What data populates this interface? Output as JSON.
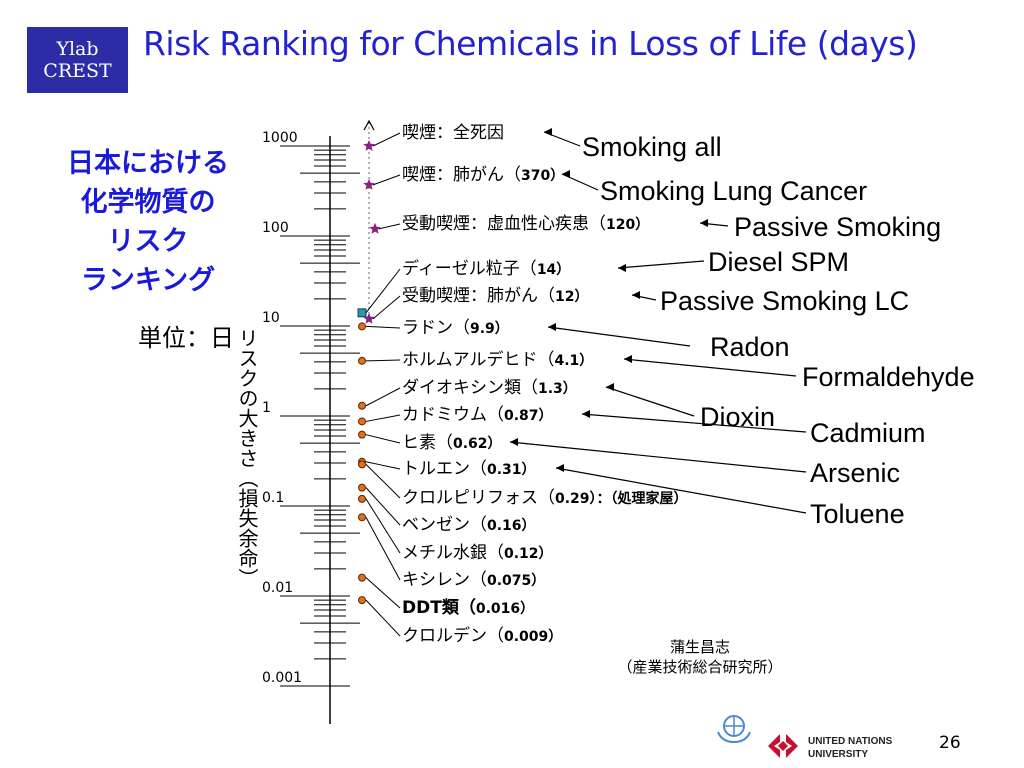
{
  "logo": {
    "line1": "Ylab",
    "line2": "CREST"
  },
  "title": "Risk Ranking for Chemicals in Loss of Life (days)",
  "jp_heading": [
    "日本における",
    "化学物質の",
    "リスク",
    "ランキング"
  ],
  "unit_label": "単位：日",
  "axis_caption": "リスクの大きさ（損失余命）",
  "colors": {
    "title": "#2222d0",
    "heading": "#1a1ad8",
    "logo_bg": "#2c2ca6",
    "star": "#8a2080",
    "dot": "#e07020",
    "square": "#20a0a0"
  },
  "chart_data": {
    "type": "scatter",
    "scale": "log",
    "ylim": [
      0.001,
      1000
    ],
    "y_ticks": [
      {
        "value": 1000,
        "label": "1000"
      },
      {
        "value": 100,
        "label": "100"
      },
      {
        "value": 10,
        "label": "10"
      },
      {
        "value": 1,
        "label": "1"
      },
      {
        "value": 0.1,
        "label": "0.1"
      },
      {
        "value": 0.01,
        "label": "0.01"
      },
      {
        "value": 0.001,
        "label": "0.001"
      }
    ],
    "points": [
      {
        "name": "喫煙：全死因",
        "value_label": "",
        "value": 700,
        "marker": "star",
        "english": "Smoking all"
      },
      {
        "name": "喫煙：肺がん（",
        "value_label": "370）",
        "value": 370,
        "marker": "star",
        "english": "Smoking Lung Cancer"
      },
      {
        "name": "受動喫煙：虚血性心疾患（",
        "value_label": "120）",
        "value": 120,
        "marker": "star",
        "english": "Passive Smoking"
      },
      {
        "name": "ディーゼル粒子（",
        "value_label": "14）",
        "value": 14,
        "marker": "square",
        "english": "Diesel SPM"
      },
      {
        "name": "受動喫煙：肺がん（",
        "value_label": "12）",
        "value": 12,
        "marker": "star",
        "english": "Passive Smoking LC"
      },
      {
        "name": "ラドン（",
        "value_label": "9.9）",
        "value": 9.9,
        "marker": "dot",
        "english": "Radon"
      },
      {
        "name": "ホルムアルデヒド（",
        "value_label": "4.1）",
        "value": 4.1,
        "marker": "dot",
        "english": "Formaldehyde"
      },
      {
        "name": "ダイオキシン類（",
        "value_label": "1.3）",
        "value": 1.3,
        "marker": "dot",
        "english": "Dioxin"
      },
      {
        "name": "カドミウム（",
        "value_label": "0.87）",
        "value": 0.87,
        "marker": "dot",
        "english": "Cadmium"
      },
      {
        "name": "ヒ素（",
        "value_label": "0.62）",
        "value": 0.62,
        "marker": "dot",
        "english": "Arsenic"
      },
      {
        "name": "トルエン（",
        "value_label": "0.31）",
        "value": 0.31,
        "marker": "dot",
        "english": "Toluene"
      },
      {
        "name": "クロルピリフォス（",
        "value_label": "0.29）：（処理家屋）",
        "value": 0.29,
        "marker": "dot",
        "english": ""
      },
      {
        "name": "ベンゼン（",
        "value_label": "0.16）",
        "value": 0.16,
        "marker": "dot",
        "english": ""
      },
      {
        "name": "メチル水銀（",
        "value_label": "0.12）",
        "value": 0.12,
        "marker": "dot",
        "english": ""
      },
      {
        "name": "キシレン（",
        "value_label": "0.075）",
        "value": 0.075,
        "marker": "dot",
        "english": ""
      },
      {
        "name": "DDT類（",
        "value_label": "0.016）",
        "value": 0.016,
        "marker": "dot",
        "english": ""
      },
      {
        "name": "クロルデン（",
        "value_label": "0.009）",
        "value": 0.009,
        "marker": "dot",
        "english": ""
      }
    ]
  },
  "credit": {
    "name": "蒲生昌志",
    "affiliation": "（産業技術総合研究所）"
  },
  "footer": {
    "unu_line1": "UNITED NATIONS",
    "unu_line2": "UNIVERSITY",
    "page_number": "26"
  }
}
